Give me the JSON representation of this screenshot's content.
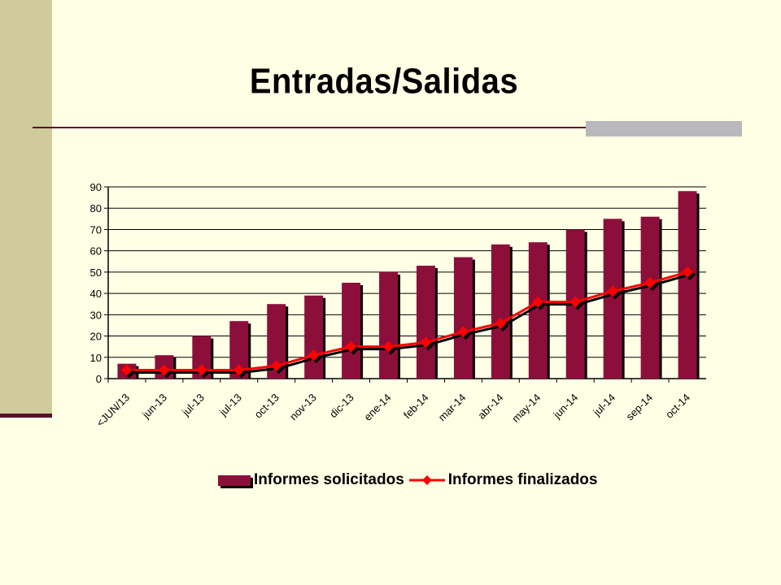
{
  "slide": {
    "title": "Entradas/Salidas"
  },
  "colors": {
    "background": "#ffffe6",
    "bar": "#8b0f3a",
    "line": "#ff0000",
    "accent_band": "#cfcb9a"
  },
  "chart_data": {
    "type": "bar",
    "title": "",
    "xlabel": "",
    "ylabel": "",
    "ylim": [
      0,
      90
    ],
    "yticks": [
      0,
      10,
      20,
      30,
      40,
      50,
      60,
      70,
      80,
      90
    ],
    "grid": true,
    "legend_position": "bottom",
    "categories": [
      "<JUN/13",
      "jun-13",
      "jul-13",
      "jul-13",
      "oct-13",
      "nov-13",
      "dic-13",
      "ene-14",
      "feb-14",
      "mar-14",
      "abr-14",
      "may-14",
      "jun-14",
      "jul-14",
      "sep-14",
      "oct-14"
    ],
    "series": [
      {
        "name": "Informes solicitados",
        "type": "bar",
        "values": [
          7,
          11,
          20,
          27,
          35,
          39,
          45,
          50,
          53,
          57,
          63,
          64,
          70,
          75,
          76,
          88
        ]
      },
      {
        "name": "Informes finalizados",
        "type": "line",
        "values": [
          4,
          4,
          4,
          4,
          6,
          11,
          15,
          15,
          17,
          22,
          26,
          36,
          36,
          41,
          45,
          50
        ]
      }
    ]
  }
}
